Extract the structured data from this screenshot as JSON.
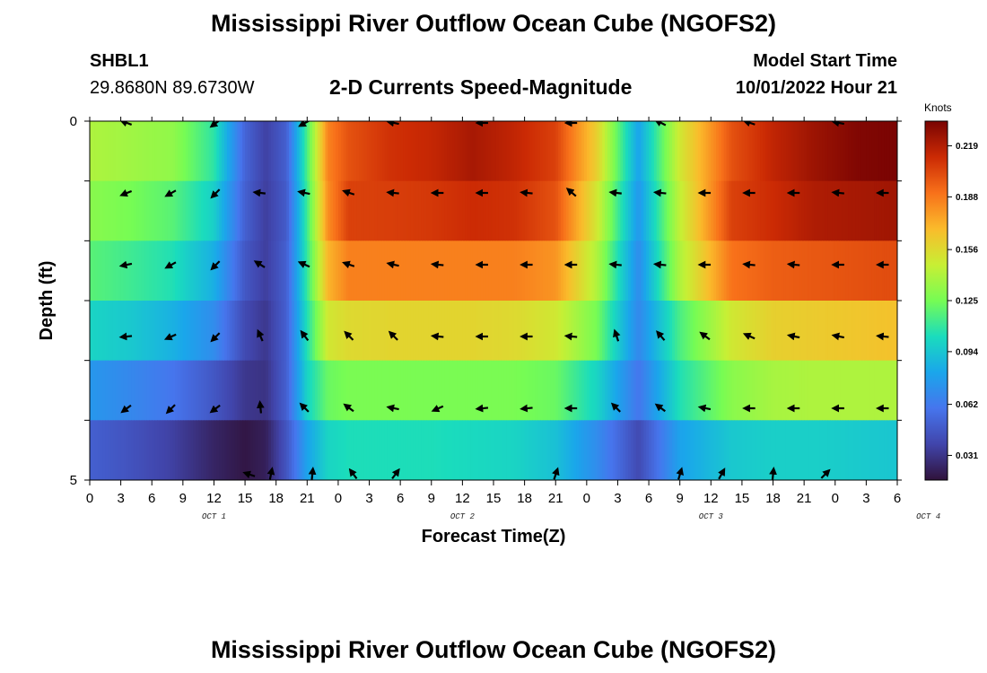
{
  "header": {
    "title": "Mississippi River Outflow Ocean Cube (NGOFS2)",
    "station": "SHBL1",
    "coordinates": "29.8680N  89.6730W",
    "variable_title": "2-D Currents Speed-Magnitude",
    "model_start_label": "Model Start Time",
    "model_start_value": "10/01/2022 Hour 21"
  },
  "footer": {
    "title": "Mississippi River Outflow Ocean Cube (NGOFS2)"
  },
  "chart_data": {
    "type": "heatmap",
    "xlabel": "Forecast Time(Z)",
    "ylabel": "Depth (ft)",
    "x_tick_labels": [
      "0",
      "3",
      "6",
      "9",
      "12",
      "15",
      "18",
      "21",
      "0",
      "3",
      "6",
      "9",
      "12",
      "15",
      "18",
      "21",
      "0",
      "3",
      "6",
      "9",
      "12",
      "15",
      "18",
      "21",
      "0",
      "3",
      "6"
    ],
    "date_labels": [
      {
        "label": "OCT 1",
        "hour_index": 12
      },
      {
        "label": "OCT 2",
        "hour_index": 36
      },
      {
        "label": "OCT 3",
        "hour_index": 60
      },
      {
        "label": "OCT 4",
        "hour_index": 81
      }
    ],
    "y_tick_labels": [
      "0",
      "5"
    ],
    "ylim": [
      0,
      5
    ],
    "x_hours": [
      0,
      78
    ],
    "colorbar": {
      "title": "Knots",
      "ticks": [
        0.031,
        0.062,
        0.094,
        0.125,
        0.156,
        0.188,
        0.219
      ],
      "range": [
        0.016,
        0.234
      ]
    },
    "depth_layers": [
      0,
      1,
      2,
      3,
      4,
      5
    ],
    "hours": [
      0,
      4,
      8,
      12,
      15,
      17,
      19,
      21,
      23,
      25,
      29,
      33,
      37,
      41,
      45,
      49,
      53,
      57,
      62,
      66,
      70,
      74,
      78
    ],
    "speed": [
      [
        0.14,
        0.136,
        0.132,
        0.108,
        0.052,
        0.036,
        0.05,
        0.115,
        0.185,
        0.2,
        0.21,
        0.214,
        0.222,
        0.215,
        0.205,
        0.16,
        0.08,
        0.15,
        0.2,
        0.215,
        0.225,
        0.232,
        0.234
      ],
      [
        0.13,
        0.125,
        0.118,
        0.098,
        0.05,
        0.035,
        0.048,
        0.112,
        0.182,
        0.205,
        0.206,
        0.208,
        0.212,
        0.21,
        0.2,
        0.15,
        0.075,
        0.145,
        0.205,
        0.212,
        0.22,
        0.222,
        0.224
      ],
      [
        0.118,
        0.112,
        0.105,
        0.085,
        0.046,
        0.035,
        0.05,
        0.11,
        0.17,
        0.186,
        0.186,
        0.186,
        0.186,
        0.186,
        0.18,
        0.14,
        0.07,
        0.14,
        0.19,
        0.196,
        0.198,
        0.2,
        0.202
      ],
      [
        0.1,
        0.095,
        0.086,
        0.07,
        0.04,
        0.032,
        0.05,
        0.105,
        0.15,
        0.156,
        0.158,
        0.158,
        0.158,
        0.156,
        0.15,
        0.125,
        0.068,
        0.115,
        0.15,
        0.16,
        0.162,
        0.164,
        0.166
      ],
      [
        0.075,
        0.068,
        0.06,
        0.046,
        0.032,
        0.03,
        0.05,
        0.1,
        0.122,
        0.126,
        0.126,
        0.126,
        0.126,
        0.126,
        0.122,
        0.1,
        0.06,
        0.105,
        0.13,
        0.138,
        0.14,
        0.14,
        0.14
      ],
      [
        0.05,
        0.044,
        0.036,
        0.024,
        0.018,
        0.022,
        0.045,
        0.08,
        0.1,
        0.104,
        0.104,
        0.104,
        0.102,
        0.1,
        0.092,
        0.07,
        0.04,
        0.08,
        0.095,
        0.098,
        0.098,
        0.096,
        0.094
      ]
    ],
    "vectors_u": [
      [
        -0.8,
        -0.8,
        -0.9,
        -1.0,
        -0.7,
        -0.3,
        -0.8,
        -0.9,
        -1.0
      ],
      [
        -1.0,
        -0.9,
        -0.7,
        -0.9,
        -1.0,
        -0.9,
        -1.0,
        -1.0,
        -1.0,
        -1.0,
        -0.7,
        -0.9,
        -1.0,
        -1.0,
        -1.0,
        -1.0,
        -1.0,
        -1.0
      ],
      [
        -1.0,
        -0.9,
        -0.7,
        -0.8,
        -0.9,
        -0.9,
        -0.9,
        -1.0,
        -1.0,
        -1.0,
        -1.0,
        -1.0,
        -1.0,
        -1.0,
        -1.0,
        -1.0,
        -1.0,
        -1.0
      ],
      [
        -1.0,
        -0.9,
        -0.7,
        -0.4,
        -0.6,
        -0.7,
        -0.7,
        -1.0,
        -1.0,
        -1.0,
        -1.0,
        -0.3,
        -0.6,
        -0.8,
        -0.9,
        -1.0,
        -1.0,
        -1.0
      ],
      [
        -0.8,
        -0.7,
        -0.8,
        -0.1,
        -0.7,
        -0.8,
        -1.0,
        -0.9,
        -1.0,
        -1.0,
        -1.0,
        -0.7,
        -0.8,
        -1.0,
        -1.0,
        -1.0,
        -1.0,
        -1.0
      ],
      [
        -0.9,
        0.2,
        0.1,
        -0.6,
        0.6,
        0.3,
        0.3,
        0.5,
        0.1,
        0.7
      ]
    ],
    "vectors_v": [
      [
        0.3,
        -0.6,
        -0.5,
        0.2,
        0.0,
        0.0,
        0.4,
        0.3,
        0.2
      ],
      [
        -0.4,
        -0.5,
        -0.7,
        0.1,
        0.2,
        0.3,
        0.1,
        0.0,
        0.0,
        0.1,
        0.6,
        0.1,
        0.1,
        0.0,
        0.0,
        0.0,
        0.1,
        0.0
      ],
      [
        -0.2,
        -0.5,
        -0.7,
        0.5,
        0.4,
        0.3,
        0.2,
        0.1,
        0.0,
        0.0,
        0.0,
        0.1,
        0.1,
        0.0,
        0.1,
        0.1,
        0.0,
        0.0
      ],
      [
        -0.1,
        -0.4,
        -0.7,
        0.9,
        0.8,
        0.7,
        0.7,
        0.1,
        0.0,
        0.0,
        0.1,
        0.9,
        0.7,
        0.6,
        0.4,
        0.2,
        0.2,
        0.1
      ],
      [
        -0.6,
        -0.7,
        -0.6,
        1.0,
        0.7,
        0.6,
        0.2,
        -0.4,
        -0.1,
        -0.1,
        0.0,
        0.7,
        0.6,
        0.2,
        0.0,
        0.0,
        0.0,
        0.0
      ],
      [
        0.3,
        1.0,
        1.0,
        0.8,
        0.8,
        0.9,
        1.0,
        0.9,
        1.0,
        0.7
      ]
    ]
  }
}
